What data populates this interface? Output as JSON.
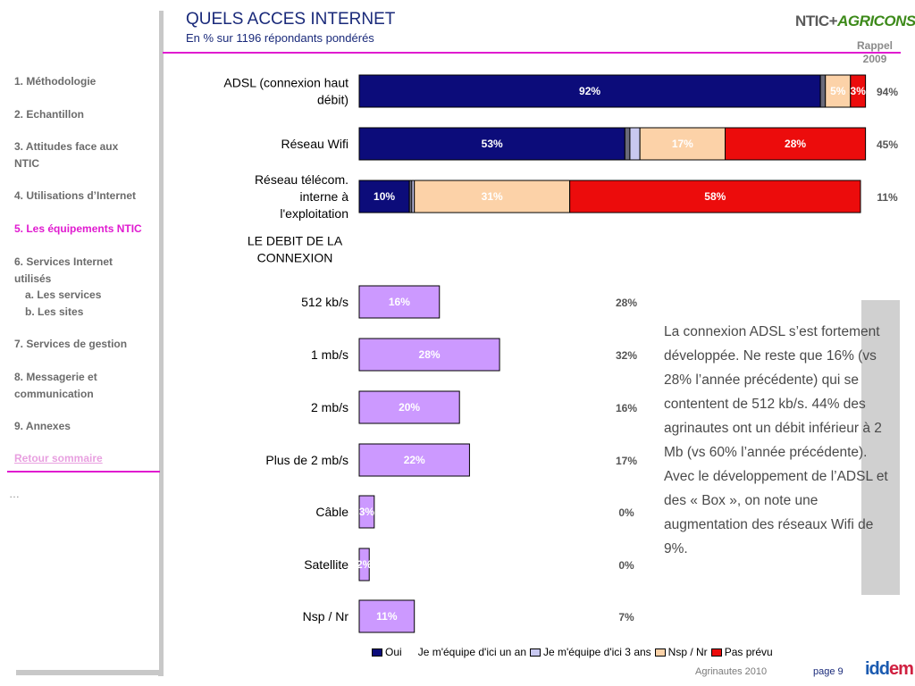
{
  "header": {
    "title": "QUELS ACCES INTERNET",
    "subtitle": "En % sur 1196 répondants pondérés",
    "logo_part1": "NTIC+",
    "logo_part2": "AGRICONSEIL",
    "rappel_label": "Rappel",
    "rappel_year": "2009"
  },
  "sidebar": {
    "items": [
      {
        "label": "1. Méthodologie"
      },
      {
        "label": "2. Echantillon"
      },
      {
        "label": "3. Attitudes face aux NTIC"
      },
      {
        "label": "4. Utilisations d’Internet"
      },
      {
        "label": "5. Les équipements NTIC"
      },
      {
        "label": "6. Services Internet utilisés"
      },
      {
        "label": "a. Les services"
      },
      {
        "label": "b. Les sites"
      },
      {
        "label": "7. Services de gestion"
      },
      {
        "label": "8. Messagerie et communication"
      },
      {
        "label": "9. Annexes"
      }
    ],
    "back_link": "Retour sommaire",
    "ellipsis": "…"
  },
  "colors": {
    "oui": "#0c0c7a",
    "un_an": "#6a6a7a",
    "trois_ans": "#c8c8f0",
    "nsp": "#fcd2a8",
    "pas_prevu": "#ec0c0c",
    "debit": "#cc99ff",
    "accent": "#e01bd0",
    "title": "#1a2a7a"
  },
  "chart_data": [
    {
      "type": "bar",
      "orientation": "horizontal",
      "stacked": true,
      "categories": [
        "ADSL (connexion haut débit)",
        "Réseau Wifi",
        "Réseau télécom. interne à l'exploitation"
      ],
      "series": [
        {
          "name": "Oui",
          "values": [
            92,
            53,
            10
          ]
        },
        {
          "name": "Je m'équipe d'ici un an",
          "values": [
            1,
            1,
            0.5
          ]
        },
        {
          "name": "Je m'équipe d'ici 3 ans",
          "values": [
            0,
            2,
            0.5
          ]
        },
        {
          "name": "Nsp / Nr",
          "values": [
            5,
            17,
            31
          ]
        },
        {
          "name": "Pas prévu",
          "values": [
            3,
            28,
            58
          ]
        }
      ],
      "value_labels": [
        [
          "92%",
          "",
          "",
          "5%",
          "3%"
        ],
        [
          "53%",
          "",
          "",
          "17%",
          "28%"
        ],
        [
          "10%",
          "",
          "",
          "31%",
          "58%"
        ]
      ],
      "rappel_2009": [
        "94%",
        "45%",
        "11%"
      ],
      "xlim": [
        0,
        100
      ]
    },
    {
      "type": "bar",
      "orientation": "horizontal",
      "title": "LE DEBIT DE LA CONNEXION",
      "categories": [
        "512 kb/s",
        "1 mb/s",
        "2 mb/s",
        "Plus de 2 mb/s",
        "Câble",
        "Satellite",
        "Nsp / Nr"
      ],
      "values": [
        16,
        28,
        20,
        22,
        3,
        2,
        11
      ],
      "value_labels": [
        "16%",
        "28%",
        "20%",
        "22%",
        "3%",
        "2%",
        "11%"
      ],
      "rappel_2009": [
        "28%",
        "32%",
        "16%",
        "17%",
        "0%",
        "0%",
        "7%"
      ],
      "xlim": [
        0,
        100
      ]
    }
  ],
  "legend": [
    {
      "label": "Oui",
      "color_key": "oui"
    },
    {
      "label": "Je m'équipe d'ici un an",
      "color_key": "un_an"
    },
    {
      "label": "Je m'équipe d'ici 3 ans",
      "color_key": "trois_ans"
    },
    {
      "label": "Nsp / Nr",
      "color_key": "nsp"
    },
    {
      "label": "Pas prévu",
      "color_key": "pas_prevu"
    }
  ],
  "commentary": {
    "para1": "La connexion ADSL s’est fortement développée. Ne reste que 16% (vs 28% l’année précédente) qui se contentent de 512 kb/s. 44% des agrinautes ont un débit inférieur à 2 Mb (vs 60% l’année précédente).",
    "para2": "Avec le développement de l’ADSL et des « Box », on note une augmentation des réseaux Wifi de 9%."
  },
  "footer": {
    "source": "Agrinautes 2010",
    "page": "page 9",
    "logo_a": "idd",
    "logo_b": "em"
  }
}
